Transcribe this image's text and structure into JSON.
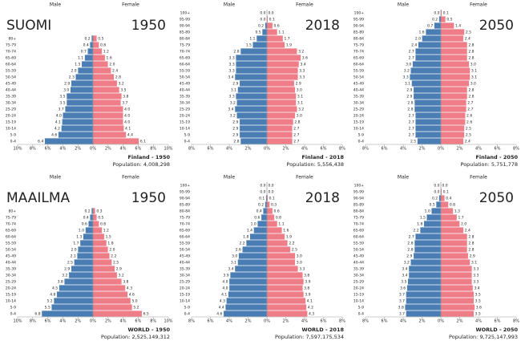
{
  "chart_data": [
    {
      "type": "pyramid",
      "title": "Finland - 1950",
      "population": "Population: 4,008,298",
      "region_label": "SUOMI",
      "year_label": "1950",
      "categories": [
        "0-4",
        "5-9",
        "10-14",
        "15-19",
        "20-24",
        "25-29",
        "30-34",
        "35-39",
        "40-44",
        "45-49",
        "50-54",
        "55-59",
        "60-64",
        "65-69",
        "70-74",
        "75-79",
        "80+"
      ],
      "series": [
        {
          "name": "Male",
          "color": "#4a7db3",
          "values": [
            6.4,
            4.6,
            4.2,
            4.1,
            4.0,
            3.7,
            3.5,
            3.5,
            3.0,
            2.9,
            2.3,
            2.0,
            1.5,
            1.1,
            0.7,
            0.4,
            0.2
          ],
          "value_labels": [
            "6.4",
            "4.6",
            "4.2",
            "4.1",
            "4.0",
            "3.7",
            "3.5",
            "3.5",
            "3.0",
            "2.9",
            "2.3",
            "2.0",
            "1.5",
            "1.1",
            "0.7",
            "0.4",
            "0.2"
          ]
        },
        {
          "name": "Female",
          "color": "#ef7d88",
          "values": [
            6.1,
            4.4,
            4.1,
            4.0,
            4.0,
            4.0,
            3.7,
            3.8,
            3.5,
            3.2,
            2.8,
            2.4,
            2.0,
            1.6,
            1.2,
            0.8,
            0.5
          ],
          "value_labels": [
            "6.1",
            "4.4",
            "4.1",
            "4.0",
            "4.0",
            "4.0",
            "3.7",
            "3.8",
            "3.5",
            "3.2",
            "2.8",
            "2.4",
            "2.0",
            "1.6",
            "1.2",
            "0.8",
            "0.5"
          ]
        }
      ],
      "xlim": [
        -10,
        10
      ],
      "xticks": [
        {
          "value": -10,
          "label": "10%"
        },
        {
          "value": -8,
          "label": "8%"
        },
        {
          "value": -6,
          "label": "6%"
        },
        {
          "value": -4,
          "label": "4%"
        },
        {
          "value": -2,
          "label": "2%"
        },
        {
          "value": 0,
          "label": "0%"
        },
        {
          "value": 2,
          "label": "2%"
        },
        {
          "value": 4,
          "label": "4%"
        },
        {
          "value": 6,
          "label": "6%"
        },
        {
          "value": 8,
          "label": "8%"
        },
        {
          "value": 10,
          "label": "10%"
        }
      ]
    },
    {
      "type": "pyramid",
      "title": "Finland - 2018",
      "population": "Population: 5,556,438",
      "year_label": "2018",
      "categories": [
        "0-4",
        "5-9",
        "10-14",
        "15-19",
        "20-24",
        "25-29",
        "30-34",
        "35-39",
        "40-44",
        "45-49",
        "50-54",
        "55-59",
        "60-64",
        "65-69",
        "70-74",
        "75-79",
        "80-84",
        "85-89",
        "90-94",
        "95-99",
        "100+"
      ],
      "series": [
        {
          "name": "Male",
          "color": "#4a7db3",
          "values": [
            2.8,
            2.9,
            2.9,
            2.9,
            3.2,
            3.4,
            3.2,
            3.3,
            3.1,
            2.9,
            3.4,
            3.3,
            3.3,
            3.3,
            2.8,
            1.5,
            1.1,
            0.5,
            0.2,
            0.0,
            0.0
          ],
          "value_labels": [
            "2.8",
            "2.9",
            "2.9",
            "2.9",
            "3.2",
            "3.4",
            "3.2",
            "3.3",
            "3.1",
            "2.9",
            "3.4",
            "3.3",
            "3.3",
            "3.3",
            "2.8",
            "1.5",
            "1.1",
            "0.5",
            "0.2",
            "0.0",
            "0.0"
          ]
        },
        {
          "name": "Female",
          "color": "#ef7d88",
          "values": [
            2.7,
            2.7,
            2.7,
            2.8,
            3.0,
            3.2,
            3.1,
            3.1,
            3.0,
            2.9,
            3.3,
            3.3,
            3.4,
            3.6,
            3.2,
            1.9,
            1.7,
            1.1,
            0.6,
            0.1,
            0.0
          ],
          "value_labels": [
            "2.7",
            "2.7",
            "2.7",
            "2.8",
            "3.0",
            "3.2",
            "3.1",
            "3.1",
            "3.0",
            "2.9",
            "3.3",
            "3.3",
            "3.4",
            "3.6",
            "3.2",
            "1.9",
            "1.7",
            "1.1",
            "0.6",
            "0.1",
            "0.0"
          ]
        }
      ],
      "xlim": [
        -8,
        8
      ],
      "xticks": [
        {
          "value": -8,
          "label": "8%"
        },
        {
          "value": -6,
          "label": "6%"
        },
        {
          "value": -4,
          "label": "4%"
        },
        {
          "value": -2,
          "label": "2%"
        },
        {
          "value": 0,
          "label": "0%"
        },
        {
          "value": 2,
          "label": "2%"
        },
        {
          "value": 4,
          "label": "4%"
        },
        {
          "value": 6,
          "label": "6%"
        },
        {
          "value": 8,
          "label": "8%"
        }
      ]
    },
    {
      "type": "pyramid",
      "title": "Finland - 2050",
      "population": "Population: 5,751,778",
      "year_label": "2050",
      "categories": [
        "0-4",
        "5-9",
        "10-14",
        "15-19",
        "20-24",
        "25-29",
        "30-34",
        "35-39",
        "40-44",
        "45-49",
        "50-54",
        "55-59",
        "60-64",
        "65-69",
        "70-74",
        "75-79",
        "80-84",
        "85-89",
        "90-94",
        "95-99",
        "100+"
      ],
      "series": [
        {
          "name": "Male",
          "color": "#4a7db3",
          "values": [
            2.5,
            2.7,
            2.7,
            2.7,
            2.7,
            2.8,
            2.8,
            2.9,
            2.9,
            3.1,
            3.3,
            3.2,
            3.0,
            2.7,
            2.7,
            2.4,
            2.0,
            1.6,
            0.7,
            0.2,
            0.0
          ],
          "value_labels": [
            "2.5",
            "2.7",
            "2.7",
            "2.7",
            "2.7",
            "2.8",
            "2.8",
            "2.9",
            "2.9",
            "3.1",
            "3.3",
            "3.2",
            "3.0",
            "2.7",
            "2.7",
            "2.4",
            "2.0",
            "1.6",
            "0.7",
            "0.2",
            "0.0"
          ]
        },
        {
          "name": "Female",
          "color": "#ef7d88",
          "values": [
            2.4,
            2.5,
            2.5,
            2.6,
            2.6,
            2.7,
            2.7,
            2.8,
            2.8,
            3.0,
            3.1,
            3.1,
            3.0,
            2.8,
            2.8,
            2.8,
            2.4,
            2.5,
            1.4,
            0.5,
            0.1
          ],
          "value_labels": [
            "2.4",
            "2.5",
            "2.5",
            "2.6",
            "2.6",
            "2.7",
            "2.7",
            "2.8",
            "2.8",
            "3.0",
            "3.1",
            "3.1",
            "3.0",
            "2.8",
            "2.8",
            "2.8",
            "2.4",
            "2.5",
            "1.4",
            "0.5",
            "0.1"
          ]
        }
      ],
      "xlim": [
        -8,
        8
      ],
      "xticks": [
        {
          "value": -8,
          "label": "8%"
        },
        {
          "value": -6,
          "label": "6%"
        },
        {
          "value": -4,
          "label": "4%"
        },
        {
          "value": -2,
          "label": "2%"
        },
        {
          "value": 0,
          "label": "0%"
        },
        {
          "value": 2,
          "label": "2%"
        },
        {
          "value": 4,
          "label": "4%"
        },
        {
          "value": 6,
          "label": "6%"
        },
        {
          "value": 8,
          "label": "8%"
        }
      ]
    },
    {
      "type": "pyramid",
      "title": "WORLD - 1950",
      "population": "Population: 2,525,149,312",
      "region_label": "MAAILMA",
      "year_label": "1950",
      "categories": [
        "0-4",
        "5-9",
        "10-14",
        "15-19",
        "20-24",
        "25-29",
        "30-34",
        "35-39",
        "40-44",
        "45-49",
        "50-54",
        "55-59",
        "60-64",
        "65-69",
        "70-74",
        "75-79",
        "80+"
      ],
      "series": [
        {
          "name": "Male",
          "color": "#4a7db3",
          "values": [
            6.8,
            5.5,
            5.2,
            4.8,
            4.5,
            3.8,
            3.2,
            2.9,
            2.5,
            2.1,
            2.0,
            1.7,
            1.3,
            1.0,
            0.6,
            0.4,
            0.2
          ],
          "value_labels": [
            "6.8",
            "5.5",
            "5.2",
            "4.8",
            "4.5",
            "3.8",
            "3.2",
            "2.9",
            "2.5",
            "2.1",
            "2.0",
            "1.7",
            "1.3",
            "1.0",
            "0.6",
            "0.4",
            "0.2"
          ]
        },
        {
          "name": "Female",
          "color": "#ef7d88",
          "values": [
            6.5,
            5.2,
            5.0,
            4.6,
            4.3,
            3.8,
            3.2,
            2.9,
            2.5,
            2.2,
            2.0,
            1.8,
            1.5,
            1.2,
            0.8,
            0.5,
            0.3
          ],
          "value_labels": [
            "6.5",
            "5.2",
            "5.0",
            "4.6",
            "4.3",
            "3.8",
            "3.2",
            "2.9",
            "2.5",
            "2.2",
            "2.0",
            "1.8",
            "1.5",
            "1.2",
            "0.8",
            "0.5",
            "0.3"
          ]
        }
      ],
      "xlim": [
        -10,
        10
      ],
      "xticks": [
        {
          "value": -10,
          "label": "10%"
        },
        {
          "value": -8,
          "label": "8%"
        },
        {
          "value": -6,
          "label": "6%"
        },
        {
          "value": -4,
          "label": "4%"
        },
        {
          "value": -2,
          "label": "2%"
        },
        {
          "value": 0,
          "label": "0%"
        },
        {
          "value": 2,
          "label": "2%"
        },
        {
          "value": 4,
          "label": "4%"
        },
        {
          "value": 6,
          "label": "6%"
        },
        {
          "value": 8,
          "label": "8%"
        },
        {
          "value": 10,
          "label": "10%"
        }
      ]
    },
    {
      "type": "pyramid",
      "title": "WORLD - 2018",
      "population": "Population: 7,597,175,534",
      "year_label": "2018",
      "categories": [
        "0-4",
        "5-9",
        "10-14",
        "15-19",
        "20-24",
        "25-29",
        "30-34",
        "35-39",
        "40-44",
        "45-49",
        "50-54",
        "55-59",
        "60-64",
        "65-69",
        "70-74",
        "75-79",
        "80-84",
        "85-89",
        "90-94",
        "95-99",
        "100+"
      ],
      "series": [
        {
          "name": "Male",
          "color": "#4a7db3",
          "values": [
            4.6,
            4.4,
            4.3,
            4.1,
            4.0,
            4.0,
            3.9,
            3.4,
            3.1,
            3.0,
            2.6,
            2.2,
            1.8,
            1.4,
            1.0,
            0.6,
            0.4,
            0.2,
            0.1,
            0.0,
            0.0
          ],
          "value_labels": [
            "4.6",
            "4.4",
            "4.3",
            "4.1",
            "4.0",
            "4.0",
            "3.9",
            "3.4",
            "3.1",
            "3.0",
            "2.6",
            "2.2",
            "1.8",
            "1.4",
            "1.0",
            "0.6",
            "0.4",
            "0.2",
            "0.1",
            "0.0",
            "0.0"
          ]
        },
        {
          "name": "Female",
          "color": "#ef7d88",
          "values": [
            4.3,
            4.2,
            4.1,
            3.9,
            3.8,
            3.9,
            3.8,
            3.3,
            3.0,
            3.0,
            2.5,
            2.2,
            1.9,
            1.6,
            1.1,
            0.8,
            0.6,
            0.3,
            0.1,
            0.0,
            0.0
          ],
          "value_labels": [
            "4.3",
            "4.2",
            "4.1",
            "3.9",
            "3.8",
            "3.9",
            "3.8",
            "3.3",
            "3.0",
            "3.0",
            "2.5",
            "2.2",
            "1.9",
            "1.6",
            "1.1",
            "0.8",
            "0.6",
            "0.3",
            "0.1",
            "0.0",
            "0.0"
          ]
        }
      ],
      "xlim": [
        -8,
        8
      ],
      "xticks": [
        {
          "value": -8,
          "label": "8%"
        },
        {
          "value": -6,
          "label": "6%"
        },
        {
          "value": -4,
          "label": "4%"
        },
        {
          "value": -2,
          "label": "2%"
        },
        {
          "value": 0,
          "label": "0%"
        },
        {
          "value": 2,
          "label": "2%"
        },
        {
          "value": 4,
          "label": "4%"
        },
        {
          "value": 6,
          "label": "6%"
        },
        {
          "value": 8,
          "label": "8%"
        }
      ]
    },
    {
      "type": "pyramid",
      "title": "WORLD - 2050",
      "population": "Population: 9,725,147,993",
      "year_label": "2050",
      "categories": [
        "0-4",
        "5-9",
        "10-14",
        "15-19",
        "20-24",
        "25-29",
        "30-34",
        "35-39",
        "40-44",
        "45-49",
        "50-54",
        "55-59",
        "60-64",
        "65-69",
        "70-74",
        "75-79",
        "80-84",
        "85-89",
        "90-94",
        "95-99",
        "100+"
      ],
      "series": [
        {
          "name": "Male",
          "color": "#4a7db3",
          "values": [
            3.7,
            3.8,
            3.7,
            3.7,
            3.6,
            3.5,
            3.4,
            3.4,
            3.2,
            2.9,
            2.8,
            2.8,
            2.7,
            2.2,
            1.8,
            1.5,
            1.0,
            0.5,
            0.2,
            0.0,
            0.0
          ],
          "value_labels": [
            "3.7",
            "3.8",
            "3.7",
            "3.7",
            "3.6",
            "3.5",
            "3.4",
            "3.4",
            "3.2",
            "2.9",
            "2.8",
            "2.8",
            "2.7",
            "2.2",
            "1.8",
            "1.5",
            "1.0",
            "0.5",
            "0.2",
            "0.0",
            "0.0"
          ]
        },
        {
          "name": "Female",
          "color": "#ef7d88",
          "values": [
            3.5,
            3.6,
            3.5,
            3.5,
            3.4,
            3.3,
            3.3,
            3.3,
            3.1,
            2.9,
            2.8,
            2.8,
            2.8,
            2.4,
            2.0,
            1.7,
            1.3,
            0.8,
            0.4,
            0.1,
            0.0
          ],
          "value_labels": [
            "3.5",
            "3.6",
            "3.5",
            "3.5",
            "3.4",
            "3.3",
            "3.3",
            "3.3",
            "3.1",
            "2.9",
            "2.8",
            "2.8",
            "2.8",
            "2.4",
            "2.0",
            "1.7",
            "1.3",
            "0.8",
            "0.4",
            "0.1",
            "0.0"
          ]
        }
      ],
      "xlim": [
        -8,
        8
      ],
      "xticks": [
        {
          "value": -8,
          "label": "8%"
        },
        {
          "value": -6,
          "label": "6%"
        },
        {
          "value": -4,
          "label": "4%"
        },
        {
          "value": -2,
          "label": "2%"
        },
        {
          "value": 0,
          "label": "0%"
        },
        {
          "value": 2,
          "label": "2%"
        },
        {
          "value": 4,
          "label": "4%"
        },
        {
          "value": 6,
          "label": "6%"
        },
        {
          "value": 8,
          "label": "8%"
        }
      ]
    }
  ]
}
